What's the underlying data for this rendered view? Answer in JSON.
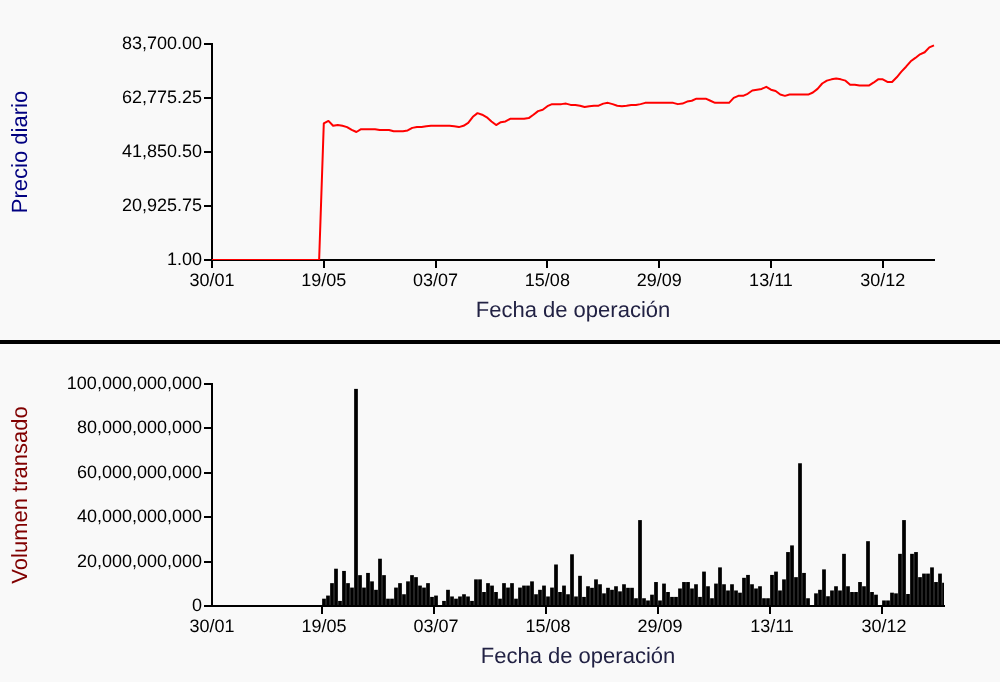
{
  "chart_data": [
    {
      "type": "line",
      "xlabel": "Fecha de operación",
      "ylabel": "Precio diario",
      "color": "#ff0000",
      "marker": "none",
      "grid": false,
      "categories": [
        "30/01",
        null,
        null,
        null,
        null,
        null,
        null,
        null,
        null,
        null,
        null,
        null,
        null,
        null,
        null,
        null,
        null,
        null,
        null,
        null,
        null,
        null,
        null,
        null,
        "19/05",
        null,
        null,
        null,
        null,
        null,
        null,
        null,
        null,
        null,
        null,
        null,
        null,
        null,
        null,
        null,
        null,
        null,
        null,
        null,
        null,
        null,
        null,
        null,
        "03/07",
        null,
        null,
        null,
        null,
        null,
        null,
        null,
        null,
        null,
        null,
        null,
        null,
        null,
        null,
        null,
        null,
        null,
        null,
        null,
        null,
        null,
        null,
        null,
        "15/08",
        null,
        null,
        null,
        null,
        null,
        null,
        null,
        null,
        null,
        null,
        null,
        null,
        null,
        null,
        null,
        null,
        null,
        null,
        null,
        null,
        null,
        null,
        null,
        "29/09",
        null,
        null,
        null,
        null,
        null,
        null,
        null,
        null,
        null,
        null,
        null,
        null,
        null,
        null,
        null,
        null,
        null,
        null,
        null,
        null,
        null,
        null,
        null,
        "13/11",
        null,
        null,
        null,
        null,
        null,
        null,
        null,
        null,
        null,
        null,
        null,
        null,
        null,
        null,
        null,
        null,
        null,
        null,
        null,
        null,
        null,
        null,
        null,
        "30/12",
        null,
        null,
        null,
        null,
        null,
        null,
        null,
        null,
        null,
        null,
        null
      ],
      "values": [
        1,
        1,
        1,
        1,
        1,
        1,
        1,
        1,
        1,
        1,
        1,
        1,
        1,
        1,
        1,
        1,
        1,
        1,
        1,
        1,
        1,
        1,
        1,
        1,
        52900,
        53900,
        52000,
        52300,
        52000,
        51500,
        50400,
        49600,
        50700,
        50700,
        50700,
        50700,
        50400,
        50400,
        50400,
        49900,
        49900,
        49900,
        50200,
        51200,
        51500,
        51500,
        51800,
        52000,
        52000,
        52000,
        52000,
        52000,
        51800,
        51500,
        52000,
        53100,
        55500,
        56900,
        56300,
        55300,
        53700,
        52300,
        53400,
        53700,
        54700,
        54700,
        54700,
        54700,
        55000,
        56300,
        57700,
        58200,
        59600,
        60400,
        60400,
        60400,
        60600,
        60100,
        60100,
        59800,
        59300,
        59600,
        59800,
        59800,
        60600,
        60900,
        60400,
        59800,
        59600,
        59800,
        60100,
        60100,
        60400,
        60900,
        60900,
        60900,
        60900,
        60900,
        60900,
        60900,
        60400,
        60600,
        61400,
        61700,
        62500,
        62500,
        62500,
        61700,
        60900,
        60900,
        60900,
        60900,
        62800,
        63600,
        63600,
        64400,
        65700,
        66000,
        66300,
        67100,
        66000,
        65500,
        64100,
        63600,
        64100,
        64100,
        64100,
        64100,
        64100,
        64900,
        66300,
        68400,
        69500,
        70000,
        70300,
        70000,
        69500,
        67900,
        67900,
        67600,
        67600,
        67600,
        68700,
        70000,
        70000,
        69000,
        69000,
        70800,
        73000,
        74900,
        77000,
        78300,
        79700,
        80500,
        82400,
        83200
      ],
      "ylim": [
        1,
        83700
      ],
      "yticks": [
        {
          "value": 1,
          "label": "1.00"
        },
        {
          "value": 20925.75,
          "label": "20,925.75"
        },
        {
          "value": 41850.5,
          "label": "41,850.50"
        },
        {
          "value": 62775.25,
          "label": "62,775.25"
        },
        {
          "value": 83700,
          "label": "83,700.00"
        }
      ]
    },
    {
      "type": "bar",
      "xlabel": "Fecha de operación",
      "ylabel": "Volumen transado",
      "color": "#000000",
      "grid": false,
      "categories": [
        "30/01",
        null,
        null,
        null,
        null,
        null,
        null,
        null,
        null,
        null,
        null,
        null,
        null,
        null,
        null,
        null,
        null,
        null,
        null,
        null,
        null,
        null,
        null,
        null,
        null,
        null,
        null,
        null,
        "19/05",
        null,
        null,
        null,
        null,
        null,
        null,
        null,
        null,
        null,
        null,
        null,
        null,
        null,
        null,
        null,
        null,
        null,
        null,
        null,
        null,
        null,
        null,
        null,
        null,
        null,
        null,
        null,
        "03/07",
        null,
        null,
        null,
        null,
        null,
        null,
        null,
        null,
        null,
        null,
        null,
        null,
        null,
        null,
        null,
        null,
        null,
        null,
        null,
        null,
        null,
        null,
        null,
        null,
        null,
        null,
        null,
        "15/08",
        null,
        null,
        null,
        null,
        null,
        null,
        null,
        null,
        null,
        null,
        null,
        null,
        null,
        null,
        null,
        null,
        null,
        null,
        null,
        null,
        null,
        null,
        null,
        null,
        null,
        null,
        null,
        "29/09",
        null,
        null,
        null,
        null,
        null,
        null,
        null,
        null,
        null,
        null,
        null,
        null,
        null,
        null,
        null,
        null,
        null,
        null,
        null,
        null,
        null,
        null,
        null,
        null,
        null,
        null,
        null,
        "13/11",
        null,
        null,
        null,
        null,
        null,
        null,
        null,
        null,
        null,
        null,
        null,
        null,
        null,
        null,
        null,
        null,
        null,
        null,
        null,
        null,
        null,
        null,
        null,
        null,
        null,
        null,
        null,
        "30/12",
        null,
        null,
        null,
        null,
        null,
        null,
        null,
        null,
        null,
        null,
        null,
        null,
        null,
        null,
        null
      ],
      "values": [
        null,
        null,
        null,
        null,
        null,
        null,
        null,
        null,
        null,
        null,
        null,
        null,
        null,
        null,
        null,
        null,
        null,
        null,
        null,
        null,
        null,
        null,
        null,
        null,
        null,
        null,
        null,
        null,
        3000000000.0,
        4400000000.0,
        10000000000.0,
        16500000000.0,
        2000000000.0,
        15500000000.0,
        10000000000.0,
        8000000000.0,
        97500000000.0,
        13600000000.0,
        8000000000.0,
        14600000000.0,
        10800000000.0,
        7000000000.0,
        21000000000.0,
        13600000000.0,
        3000000000.0,
        3000000000.0,
        8000000000.0,
        10000000000.0,
        5000000000.0,
        10800000000.0,
        13600000000.0,
        12700000000.0,
        8900000000.0,
        8000000000.0,
        10000000000.0,
        3800000000.0,
        4400000000.0,
        null,
        2000000000.0,
        7000000000.0,
        4000000000.0,
        3000000000.0,
        4000000000.0,
        5000000000.0,
        4000000000.0,
        2000000000.0,
        11700000000.0,
        11700000000.0,
        6000000000.0,
        10000000000.0,
        8900000000.0,
        6000000000.0,
        3000000000.0,
        10000000000.0,
        8000000000.0,
        10000000000.0,
        3000000000.0,
        8000000000.0,
        8900000000.0,
        8900000000.0,
        10800000000.0,
        5000000000.0,
        7000000000.0,
        8900000000.0,
        4000000000.0,
        8000000000.0,
        18400000000.0,
        6000000000.0,
        8900000000.0,
        5000000000.0,
        23000000000.0,
        4000000000.0,
        13300000000.0,
        3800000000.0,
        8600000000.0,
        7900000000.0,
        11700000000.0,
        9500000000.0,
        5400000000.0,
        7900000000.0,
        7000000000.0,
        8600000000.0,
        6300000000.0,
        9500000000.0,
        7900000000.0,
        7900000000.0,
        3200000000.0,
        38400000000.0,
        3200000000.0,
        2200000000.0,
        4800000000.0,
        10500000000.0,
        2200000000.0,
        9800000000.0,
        6000000000.0,
        3800000000.0,
        3800000000.0,
        7600000000.0,
        10500000000.0,
        10500000000.0,
        7600000000.0,
        9500000000.0,
        3800000000.0,
        15200000000.0,
        8600000000.0,
        3200000000.0,
        9800000000.0,
        17100000000.0,
        9500000000.0,
        6700000000.0,
        9500000000.0,
        6700000000.0,
        5700000000.0,
        12400000000.0,
        13700000000.0,
        9500000000.0,
        7600000000.0,
        8600000000.0,
        3200000000.0,
        3200000000.0,
        13700000000.0,
        15200000000.0,
        6700000000.0,
        11700000000.0,
        24000000000.0,
        27000000000.0,
        12700000000.0,
        64000000000.0,
        14600000000.0,
        3200000000.0,
        null,
        5400000000.0,
        7000000000.0,
        16200000000.0,
        4100000000.0,
        6700000000.0,
        8600000000.0,
        6700000000.0,
        23200000000.0,
        8600000000.0,
        6000000000.0,
        6000000000.0,
        10500000000.0,
        8600000000.0,
        28900000000.0,
        6000000000.0,
        4800000000.0,
        null,
        2200000000.0,
        2200000000.0,
        5700000000.0,
        5400000000.0,
        23200000000.0,
        38400000000.0,
        5100000000.0,
        23200000000.0,
        24000000000.0,
        12700000000.0,
        14300000000.0,
        14300000000.0,
        17100000000.0,
        10500000000.0,
        14300000000.0,
        10200000000.0
      ],
      "ylim": [
        0,
        100000000000
      ],
      "yticks": [
        0,
        {
          "value": 20000000000,
          "label": "20,000,000,000"
        },
        {
          "value": 40000000000,
          "label": "40,000,000,000"
        },
        {
          "value": 60000000000,
          "label": "60,000,000,000"
        },
        {
          "value": 80000000000,
          "label": "80,000,000,000"
        },
        {
          "value": 100000000000,
          "label": "100,000,000,000"
        }
      ]
    }
  ]
}
